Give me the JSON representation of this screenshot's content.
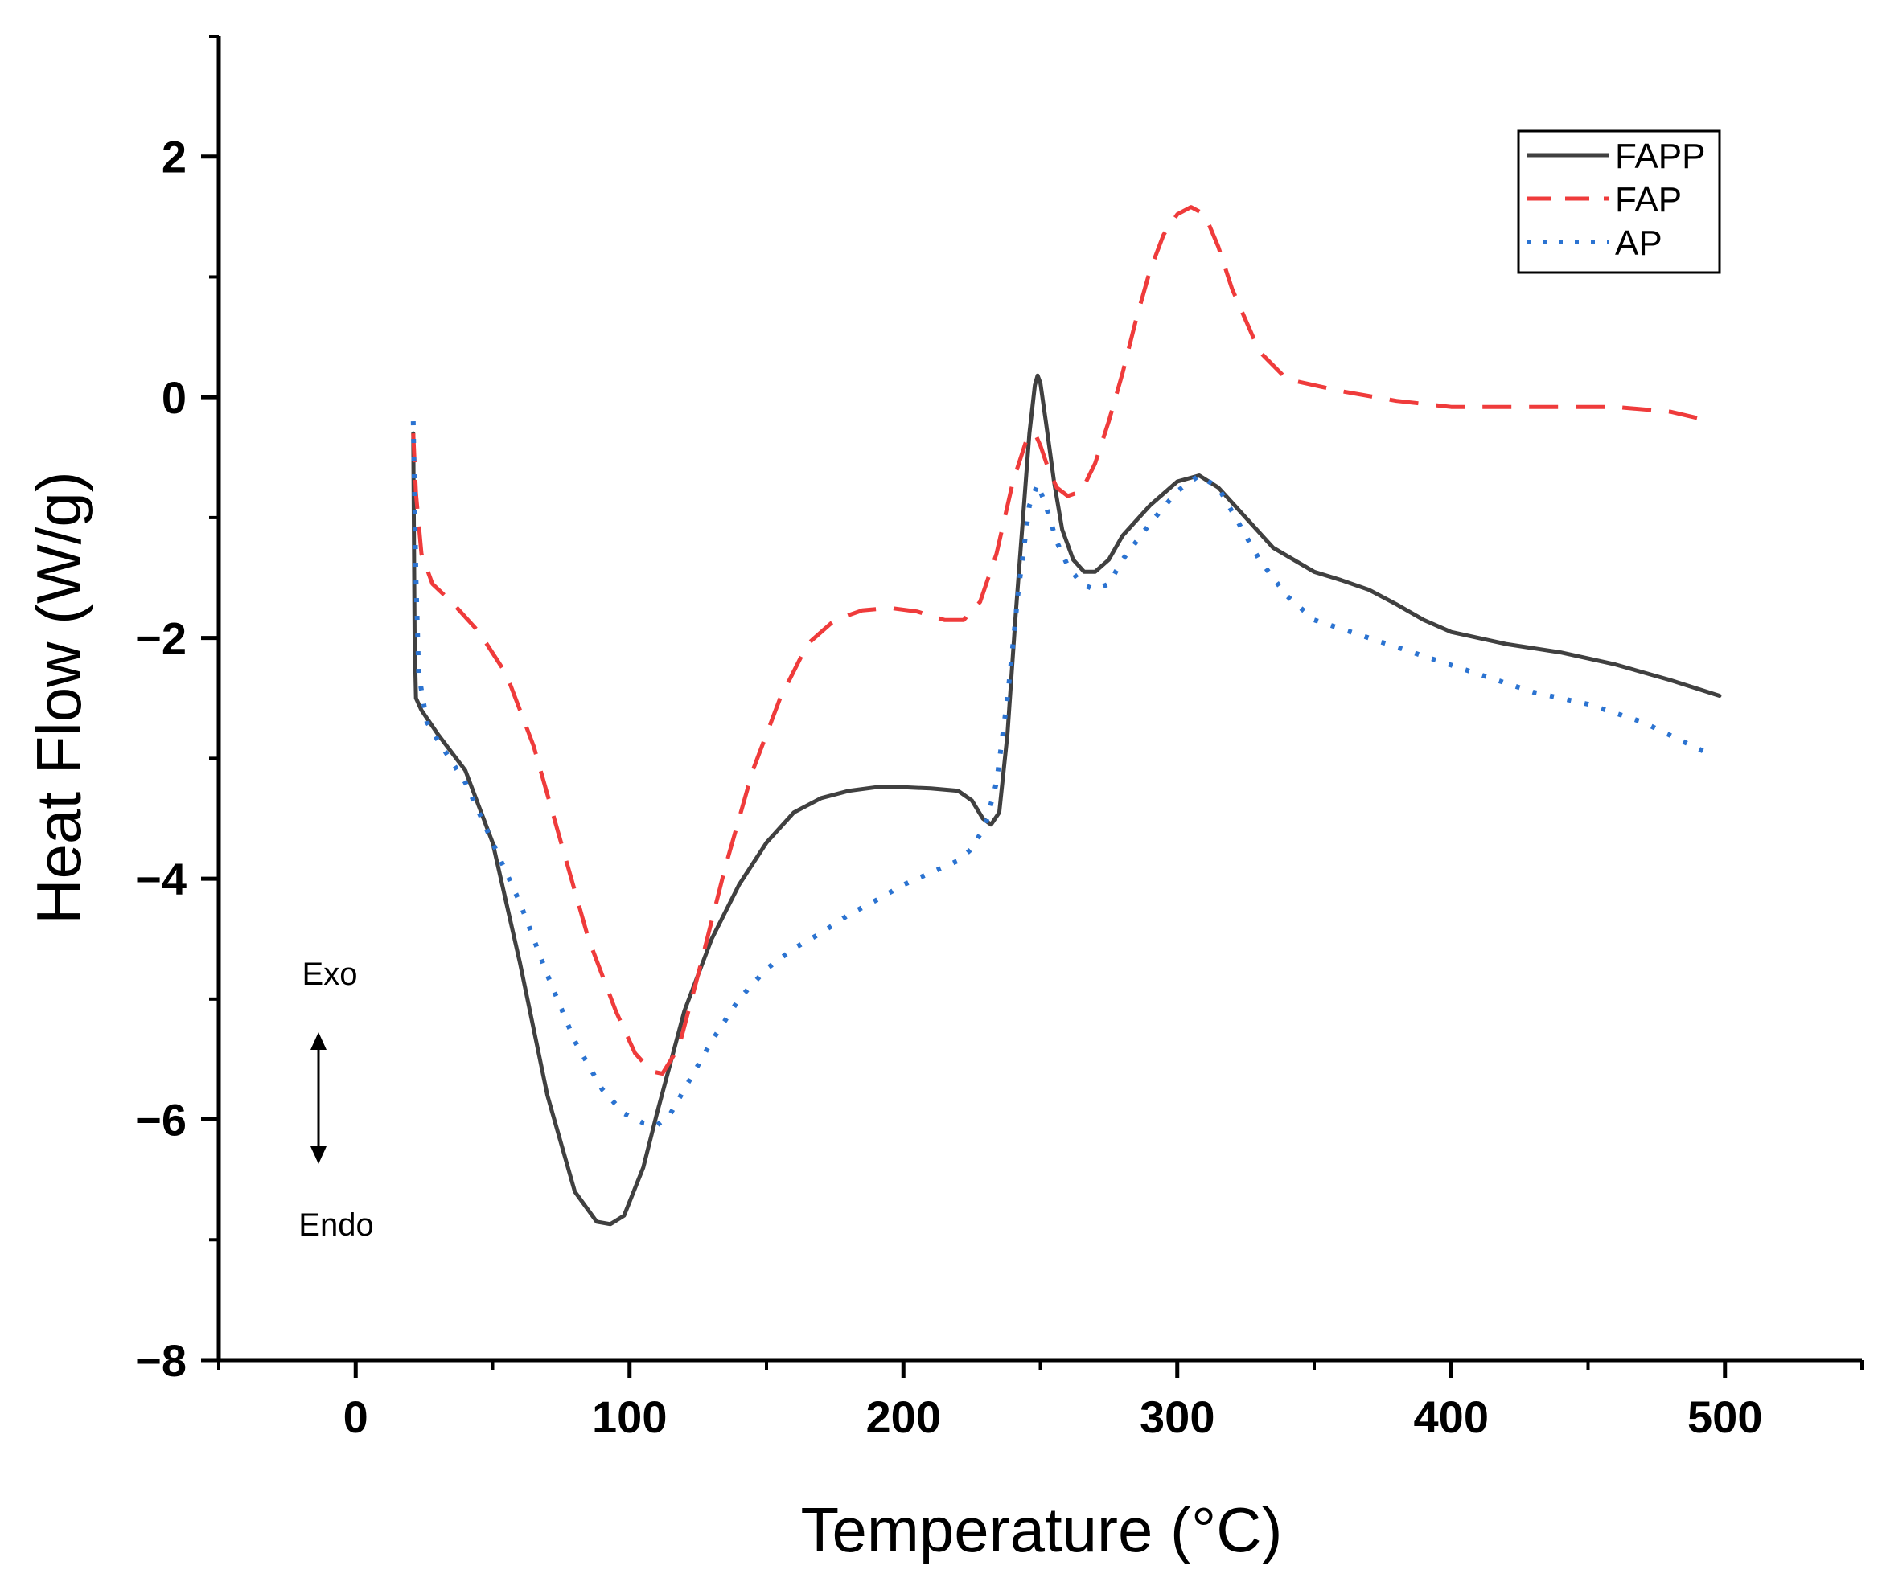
{
  "chart_data": {
    "type": "line",
    "title": "",
    "xlabel": "Temperature (°C)",
    "ylabel": "Heat Flow (W/g)",
    "xlim": [
      -50,
      550
    ],
    "ylim": [
      -8,
      3
    ],
    "xticks": [
      0,
      100,
      200,
      300,
      400,
      500
    ],
    "yticks": [
      -8,
      -6,
      -4,
      -2,
      0,
      2
    ],
    "xtick_labels": [
      "0",
      "100",
      "200",
      "300",
      "400",
      "500"
    ],
    "ytick_labels": [
      "−8",
      "−6",
      "−4",
      "−2",
      "0",
      "2"
    ],
    "grid": false,
    "legend_position": "top-right",
    "annotations": {
      "exo": "Exo",
      "endo": "Endo"
    },
    "series": [
      {
        "name": "FAPP",
        "color": "#404040",
        "style": "solid",
        "x": [
          21,
          21.5,
          22,
          24,
          30,
          40,
          50,
          60,
          70,
          80,
          88,
          93,
          98,
          105,
          110,
          120,
          130,
          140,
          150,
          160,
          170,
          180,
          190,
          200,
          210,
          220,
          225,
          229,
          232,
          235,
          238,
          241,
          244,
          246,
          248,
          249,
          250,
          252,
          255,
          258,
          262,
          266,
          270,
          275,
          280,
          290,
          300,
          308,
          315,
          325,
          335,
          350,
          360,
          370,
          380,
          390,
          400,
          420,
          440,
          460,
          480,
          498
        ],
        "y": [
          -0.3,
          -2.0,
          -2.5,
          -2.6,
          -2.8,
          -3.1,
          -3.7,
          -4.7,
          -5.8,
          -6.6,
          -6.85,
          -6.87,
          -6.8,
          -6.4,
          -5.95,
          -5.1,
          -4.5,
          -4.05,
          -3.7,
          -3.45,
          -3.33,
          -3.27,
          -3.24,
          -3.24,
          -3.25,
          -3.27,
          -3.35,
          -3.5,
          -3.55,
          -3.45,
          -2.8,
          -1.8,
          -0.9,
          -0.3,
          0.1,
          0.18,
          0.12,
          -0.2,
          -0.7,
          -1.1,
          -1.35,
          -1.45,
          -1.45,
          -1.35,
          -1.15,
          -0.9,
          -0.7,
          -0.65,
          -0.75,
          -1.0,
          -1.25,
          -1.45,
          -1.52,
          -1.6,
          -1.72,
          -1.85,
          -1.95,
          -2.05,
          -2.12,
          -2.22,
          -2.35,
          -2.48
        ]
      },
      {
        "name": "FAP",
        "color": "#ef3b3b",
        "style": "dashed",
        "x": [
          21,
          22,
          24,
          28,
          35,
          45,
          55,
          65,
          75,
          85,
          95,
          102,
          108,
          112,
          118,
          125,
          135,
          145,
          155,
          165,
          175,
          185,
          195,
          205,
          215,
          222,
          228,
          234,
          240,
          245,
          248,
          250,
          253,
          256,
          260,
          265,
          270,
          275,
          280,
          285,
          290,
          295,
          300,
          305,
          310,
          315,
          320,
          330,
          340,
          360,
          380,
          400,
          420,
          440,
          460,
          480,
          495
        ],
        "y": [
          -0.3,
          -0.8,
          -1.3,
          -1.55,
          -1.7,
          -1.95,
          -2.3,
          -2.9,
          -3.7,
          -4.5,
          -5.1,
          -5.45,
          -5.6,
          -5.62,
          -5.4,
          -4.8,
          -3.9,
          -3.1,
          -2.5,
          -2.05,
          -1.85,
          -1.77,
          -1.75,
          -1.78,
          -1.85,
          -1.85,
          -1.7,
          -1.3,
          -0.7,
          -0.35,
          -0.3,
          -0.4,
          -0.6,
          -0.75,
          -0.82,
          -0.78,
          -0.55,
          -0.2,
          0.2,
          0.65,
          1.05,
          1.35,
          1.52,
          1.58,
          1.52,
          1.25,
          0.9,
          0.38,
          0.15,
          0.05,
          -0.03,
          -0.08,
          -0.08,
          -0.08,
          -0.08,
          -0.12,
          -0.2
        ]
      },
      {
        "name": "AP",
        "color": "#2b73d1",
        "style": "dotted",
        "x": [
          21,
          22,
          23,
          26,
          30,
          40,
          50,
          60,
          70,
          80,
          90,
          98,
          105,
          110,
          115,
          120,
          130,
          140,
          150,
          160,
          170,
          180,
          190,
          200,
          210,
          220,
          225,
          230,
          234,
          238,
          242,
          246,
          249,
          252,
          256,
          260,
          265,
          270,
          275,
          280,
          290,
          300,
          308,
          315,
          320,
          330,
          340,
          350,
          370,
          390,
          410,
          430,
          450,
          470,
          493
        ],
        "y": [
          -0.2,
          -1.5,
          -2.3,
          -2.7,
          -2.85,
          -3.2,
          -3.7,
          -4.2,
          -4.8,
          -5.35,
          -5.75,
          -5.95,
          -6.03,
          -6.05,
          -5.95,
          -5.75,
          -5.35,
          -5.0,
          -4.75,
          -4.58,
          -4.45,
          -4.3,
          -4.18,
          -4.05,
          -3.95,
          -3.85,
          -3.75,
          -3.55,
          -3.2,
          -2.5,
          -1.6,
          -0.9,
          -0.72,
          -0.9,
          -1.2,
          -1.4,
          -1.55,
          -1.6,
          -1.55,
          -1.35,
          -1.05,
          -0.78,
          -0.65,
          -0.75,
          -0.95,
          -1.35,
          -1.65,
          -1.85,
          -2.0,
          -2.15,
          -2.3,
          -2.45,
          -2.55,
          -2.7,
          -2.95
        ]
      }
    ]
  }
}
